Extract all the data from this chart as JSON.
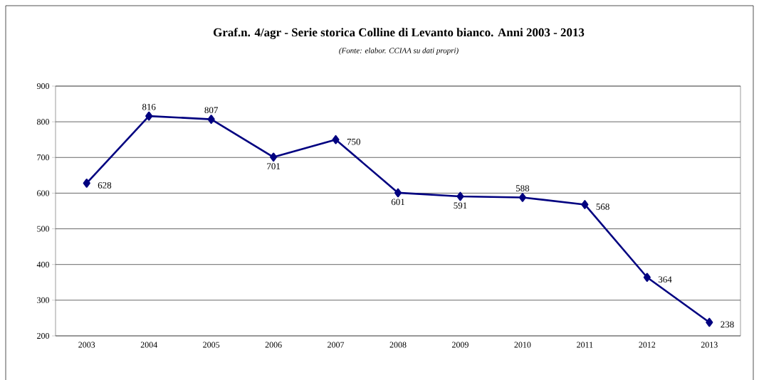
{
  "chart_data": {
    "type": "line",
    "title": "Graf.n. 4/agr - Serie storica Colline di Levanto bianco. Anni 2003 - 2013",
    "subtitle": "(Fonte: elabor. CCIAA su dati propri)",
    "categories": [
      "2003",
      "2004",
      "2005",
      "2006",
      "2007",
      "2008",
      "2009",
      "2010",
      "2011",
      "2012",
      "2013"
    ],
    "values": [
      628,
      816,
      807,
      701,
      750,
      601,
      591,
      588,
      568,
      364,
      238
    ],
    "color": "#000080",
    "marker": "diamond",
    "line_style": "solid",
    "data_labels": true,
    "grid": "y",
    "ylim": [
      200,
      900
    ],
    "yticks": [
      200,
      300,
      400,
      500,
      600,
      700,
      800,
      900
    ]
  }
}
